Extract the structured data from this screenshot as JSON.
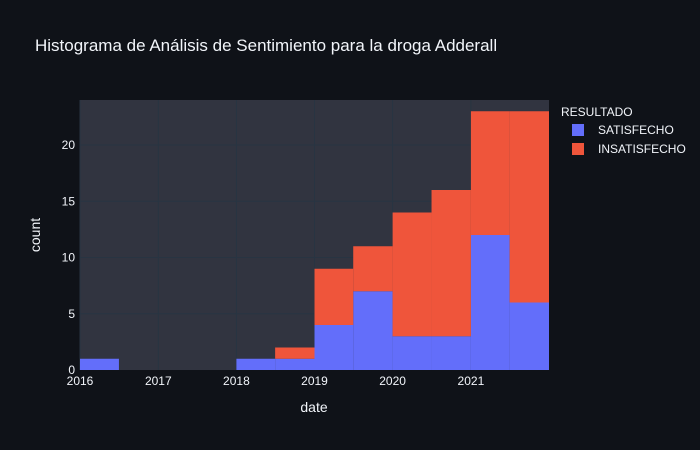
{
  "chart_data": {
    "type": "bar",
    "barmode": "stack",
    "title": "Histograma de Análisis de Sentimiento para la droga Adderall",
    "xlabel": "date",
    "ylabel": "count",
    "xlim": [
      "2016-01-01",
      "2022-01-01"
    ],
    "ylim": [
      0,
      24
    ],
    "x_ticks": [
      "2016",
      "2017",
      "2018",
      "2019",
      "2020",
      "2021"
    ],
    "y_ticks": [
      0,
      5,
      10,
      15,
      20
    ],
    "bins": [
      [
        "2016-01-01",
        "2016-07-01"
      ],
      [
        "2016-07-01",
        "2017-01-01"
      ],
      [
        "2017-01-01",
        "2017-07-01"
      ],
      [
        "2017-07-01",
        "2018-01-01"
      ],
      [
        "2018-01-01",
        "2018-07-01"
      ],
      [
        "2018-07-01",
        "2019-01-01"
      ],
      [
        "2019-01-01",
        "2019-07-01"
      ],
      [
        "2019-07-01",
        "2020-01-01"
      ],
      [
        "2020-01-01",
        "2020-07-01"
      ],
      [
        "2020-07-01",
        "2021-01-01"
      ],
      [
        "2021-01-01",
        "2021-07-01"
      ],
      [
        "2021-07-01",
        "2022-01-01"
      ]
    ],
    "series": [
      {
        "name": "SATISFECHO",
        "color": "#636efa",
        "values": [
          1,
          0,
          0,
          0,
          1,
          1,
          4,
          7,
          3,
          3,
          12,
          6
        ]
      },
      {
        "name": "INSATISFECHO",
        "color": "#ef553b",
        "values": [
          0,
          0,
          0,
          0,
          0,
          1,
          5,
          4,
          11,
          13,
          11,
          17
        ]
      }
    ],
    "legend": {
      "title": "RESULTADO",
      "placement": "top-right, outside"
    },
    "grid": true,
    "colors": {
      "paper": "#0f1218",
      "plot": "#313440",
      "grid": "#283442",
      "text": "#f2f5fa"
    }
  }
}
